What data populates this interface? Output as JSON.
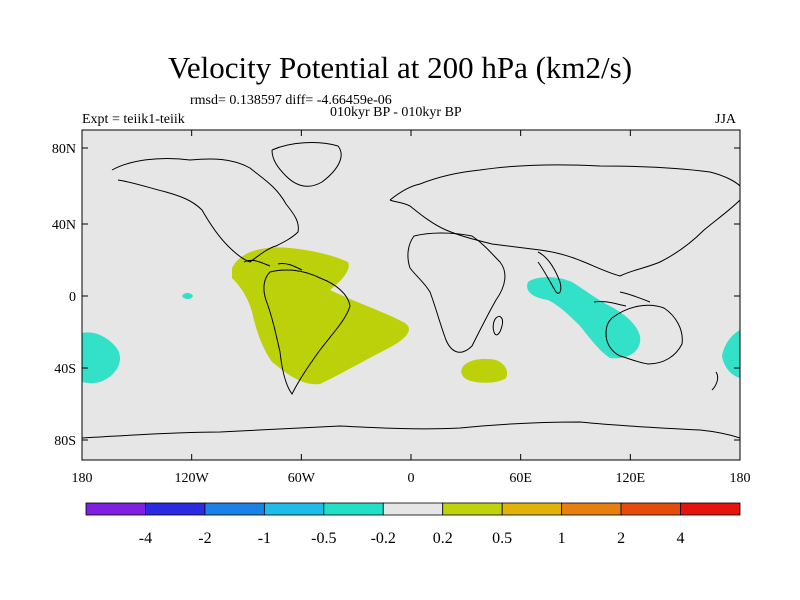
{
  "title": "Velocity Potential at 200 hPa (km2/s)",
  "stats_line": "rmsd= 0.138597 diff= -4.66459e-06",
  "period_line": "010kyr BP - 010kyr BP",
  "experiment_label": "Expt = teiik1-teiik",
  "season_label": "JJA",
  "axes": {
    "lon_ticks": [
      "180",
      "120W",
      "60W",
      "0",
      "60E",
      "120E",
      "180"
    ],
    "lat_ticks": [
      "80N",
      "40N",
      "0",
      "40S",
      "80S"
    ]
  },
  "colors": {
    "background_field": "#e6e6e6",
    "positive_anomaly": "#bcd10a",
    "negative_anomaly": "#33e0c8"
  },
  "colorbar": {
    "colors": [
      "#7f1fdf",
      "#2b2ae0",
      "#1a82e6",
      "#1dbce9",
      "#22dfc8",
      "#e6e6e6",
      "#bfd20a",
      "#e1b20a",
      "#e57f0e",
      "#e54b0a",
      "#e6140f"
    ],
    "labels": [
      "-4",
      "-2",
      "-1",
      "-0.5",
      "-0.2",
      "0.2",
      "0.5",
      "1",
      "2",
      "4"
    ]
  }
}
